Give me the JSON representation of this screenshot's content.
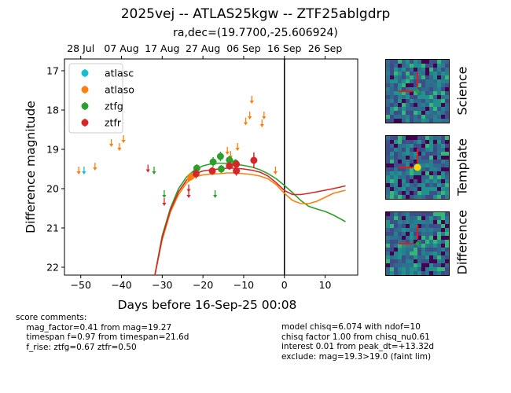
{
  "title": "2025vej -- ATLAS25kgw -- ZTF25ablgdrp",
  "subtitle": "ra,dec=(19.7700,-25.606924)",
  "chart_data": {
    "type": "scatter",
    "xlabel": "Days before 16-Sep-25 00:08",
    "ylabel": "Difference magnitude",
    "xlim": [
      -54,
      18
    ],
    "ylim": [
      22.2,
      16.7
    ],
    "y_inverted": true,
    "x_ticks": [
      -50,
      -40,
      -30,
      -20,
      -10,
      0,
      10
    ],
    "y_ticks": [
      17,
      18,
      19,
      20,
      21,
      22
    ],
    "top_axis_ticks": [
      {
        "x": -50,
        "label": "28 Jul"
      },
      {
        "x": -40,
        "label": "07 Aug"
      },
      {
        "x": -30,
        "label": "17 Aug"
      },
      {
        "x": -20,
        "label": "27 Aug"
      },
      {
        "x": -10,
        "label": "06 Sep"
      },
      {
        "x": 0,
        "label": "16 Sep"
      },
      {
        "x": 10,
        "label": "26 Sep"
      }
    ],
    "vline_x": 0,
    "legend_position": "upper left",
    "series": [
      {
        "name": "atlasc",
        "color": "#17becf",
        "limits": [
          [
            -49.2,
            19.5
          ]
        ],
        "points": []
      },
      {
        "name": "atlaso",
        "color": "#ff7f0e",
        "limits": [
          [
            -50.5,
            19.5
          ],
          [
            -46.5,
            19.4
          ],
          [
            -42.5,
            18.8
          ],
          [
            -40.5,
            18.9
          ],
          [
            -39.5,
            18.7
          ],
          [
            -23.5,
            19.7
          ],
          [
            -14.0,
            19.0
          ],
          [
            -13.2,
            19.1
          ],
          [
            -11.5,
            18.9
          ],
          [
            -9.5,
            18.25
          ],
          [
            -8.5,
            18.1
          ],
          [
            -8.0,
            17.7
          ],
          [
            -5.5,
            18.3
          ],
          [
            -5.0,
            18.1
          ],
          [
            -2.2,
            19.5
          ]
        ],
        "points": [
          [
            -23,
            19.7,
            0.08
          ]
        ]
      },
      {
        "name": "ztfg",
        "color": "#2ca02c",
        "limits": [
          [
            -32.0,
            19.5
          ],
          [
            -29.5,
            20.1
          ],
          [
            -17.0,
            20.1
          ]
        ],
        "points": [
          [
            -21.5,
            19.48,
            0.1
          ],
          [
            -17.5,
            19.32,
            0.12
          ],
          [
            -15.7,
            19.18,
            0.12
          ],
          [
            -13.5,
            19.27,
            0.1
          ],
          [
            -12.0,
            19.35,
            0.1
          ],
          [
            -15.5,
            19.5,
            0.1
          ]
        ]
      },
      {
        "name": "ztfr",
        "color": "#d62728",
        "limits": [
          [
            -33.5,
            19.45
          ],
          [
            -29.5,
            20.3
          ],
          [
            -23.5,
            19.95
          ],
          [
            -23.5,
            20.1
          ]
        ],
        "points": [
          [
            -21.7,
            19.62,
            0.12
          ],
          [
            -17.7,
            19.55,
            0.1
          ],
          [
            -13.5,
            19.42,
            0.1
          ],
          [
            -11.8,
            19.38,
            0.1
          ],
          [
            -11.8,
            19.55,
            0.12
          ],
          [
            -7.5,
            19.28,
            0.2
          ]
        ]
      }
    ],
    "model_curves": [
      {
        "name": "ztfg-model",
        "color": "#2ca02c",
        "points": [
          [
            -31.8,
            22.2
          ],
          [
            -30,
            21.2
          ],
          [
            -28,
            20.5
          ],
          [
            -26,
            20.0
          ],
          [
            -24,
            19.7
          ],
          [
            -22,
            19.52
          ],
          [
            -20,
            19.42
          ],
          [
            -18,
            19.37
          ],
          [
            -16,
            19.35
          ],
          [
            -14,
            19.36
          ],
          [
            -12,
            19.38
          ],
          [
            -10,
            19.41
          ],
          [
            -8,
            19.45
          ],
          [
            -6,
            19.52
          ],
          [
            -4,
            19.62
          ],
          [
            -2,
            19.75
          ],
          [
            0,
            19.92
          ],
          [
            2,
            20.1
          ],
          [
            4,
            20.3
          ],
          [
            6,
            20.45
          ],
          [
            8,
            20.52
          ],
          [
            10,
            20.58
          ],
          [
            12,
            20.67
          ],
          [
            15,
            20.84
          ]
        ]
      },
      {
        "name": "atlaso-model",
        "color": "#ff7f0e",
        "points": [
          [
            -31.8,
            22.2
          ],
          [
            -30,
            21.3
          ],
          [
            -28,
            20.6
          ],
          [
            -26,
            20.15
          ],
          [
            -24,
            19.85
          ],
          [
            -22,
            19.7
          ],
          [
            -20,
            19.65
          ],
          [
            -18,
            19.63
          ],
          [
            -16,
            19.62
          ],
          [
            -14,
            19.6
          ],
          [
            -12,
            19.6
          ],
          [
            -10,
            19.62
          ],
          [
            -8,
            19.64
          ],
          [
            -6,
            19.68
          ],
          [
            -4,
            19.75
          ],
          [
            -2,
            19.9
          ],
          [
            0,
            20.12
          ],
          [
            2,
            20.3
          ],
          [
            4,
            20.38
          ],
          [
            6,
            20.38
          ],
          [
            8,
            20.32
          ],
          [
            10,
            20.22
          ],
          [
            12,
            20.12
          ],
          [
            15,
            20.04
          ]
        ]
      },
      {
        "name": "ztfr-model",
        "color": "#d62728",
        "points": [
          [
            -31.8,
            22.2
          ],
          [
            -30,
            21.25
          ],
          [
            -28,
            20.55
          ],
          [
            -26,
            20.08
          ],
          [
            -24,
            19.78
          ],
          [
            -22,
            19.62
          ],
          [
            -20,
            19.55
          ],
          [
            -18,
            19.52
          ],
          [
            -16,
            19.5
          ],
          [
            -14,
            19.48
          ],
          [
            -12,
            19.48
          ],
          [
            -10,
            19.5
          ],
          [
            -8,
            19.53
          ],
          [
            -6,
            19.58
          ],
          [
            -4,
            19.68
          ],
          [
            -2,
            19.85
          ],
          [
            0,
            20.05
          ],
          [
            2,
            20.15
          ],
          [
            4,
            20.15
          ],
          [
            6,
            20.12
          ],
          [
            8,
            20.08
          ],
          [
            10,
            20.04
          ],
          [
            12,
            20.0
          ],
          [
            15,
            19.93
          ]
        ]
      }
    ]
  },
  "stamps": [
    {
      "label": "Science",
      "center_mag_color": "#2ca02c"
    },
    {
      "label": "Template",
      "center_mag_color": "#ffd700"
    },
    {
      "label": "Difference",
      "center_mag_color": "#2ca02c"
    }
  ],
  "score_comments": "score comments:\n    mag_factor=0.41 from mag=19.27\n    timespan f=0.97 from timespan=21.6d\n    f_rise: ztfg=0.67 ztfr=0.50",
  "model_comments": "model chisq=6.074 with ndof=10\nchisq factor 1.00 from chisq_nu0.61\ninterest 0.01 from peak_dt=+13.32d\nexclude: mag=19.3>19.0 (faint lim)"
}
